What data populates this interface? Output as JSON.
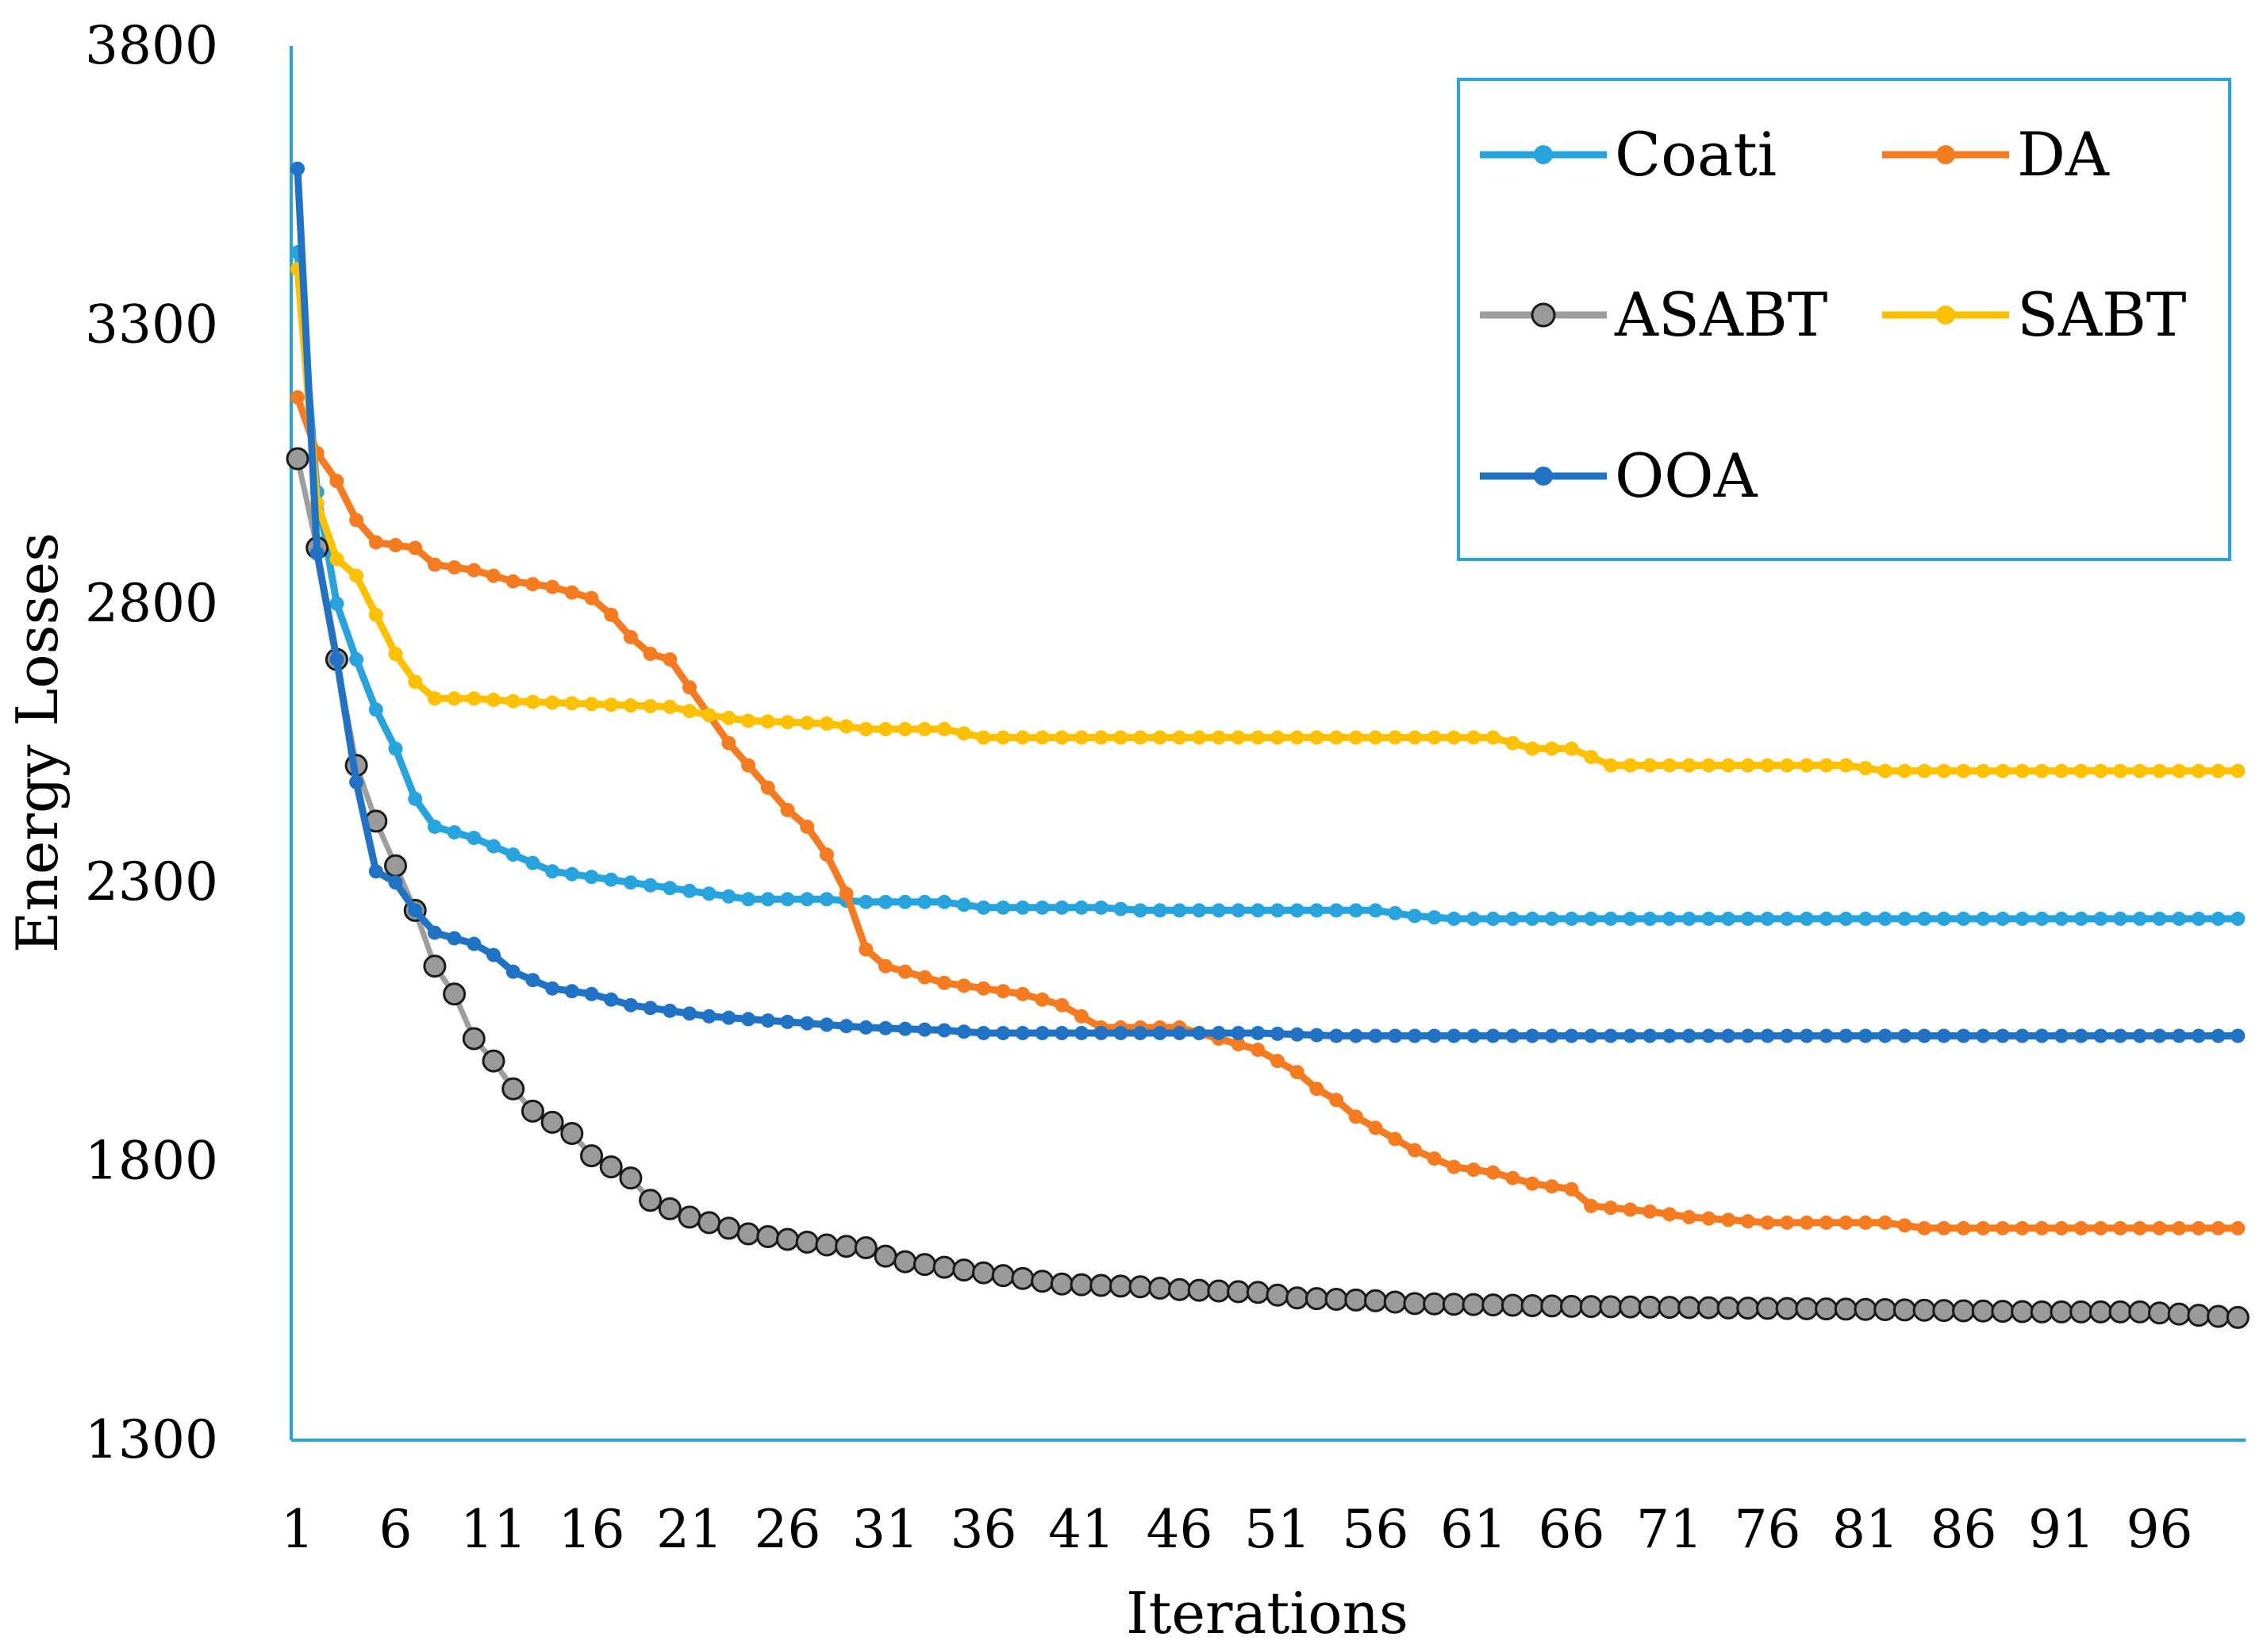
{
  "chart_data": {
    "type": "line",
    "title": "",
    "xlabel": "Iterations",
    "ylabel": "Energy Losses",
    "xlim": [
      1,
      100
    ],
    "ylim": [
      1300,
      3800
    ],
    "yticks": [
      1300,
      1800,
      2300,
      2800,
      3300,
      3800
    ],
    "xticks": [
      1,
      6,
      11,
      16,
      21,
      26,
      31,
      36,
      41,
      46,
      51,
      56,
      61,
      66,
      71,
      76,
      81,
      86,
      91,
      96
    ],
    "legend_position": "top-right",
    "grid": false,
    "series": [
      {
        "name": "Coati",
        "color": "#27A3DD",
        "keypoints": [
          [
            1,
            3430
          ],
          [
            2,
            3000
          ],
          [
            3,
            2800
          ],
          [
            4,
            2700
          ],
          [
            5,
            2610
          ],
          [
            6,
            2540
          ],
          [
            7,
            2450
          ],
          [
            8,
            2400
          ],
          [
            10,
            2380
          ],
          [
            12,
            2350
          ],
          [
            14,
            2320
          ],
          [
            16,
            2310
          ],
          [
            18,
            2300
          ],
          [
            20,
            2290
          ],
          [
            22,
            2280
          ],
          [
            24,
            2270
          ],
          [
            28,
            2270
          ],
          [
            30,
            2265
          ],
          [
            34,
            2265
          ],
          [
            36,
            2255
          ],
          [
            42,
            2255
          ],
          [
            44,
            2250
          ],
          [
            56,
            2250
          ],
          [
            58,
            2240
          ],
          [
            60,
            2235
          ],
          [
            100,
            2235
          ]
        ]
      },
      {
        "name": "DA",
        "color": "#F47B20",
        "keypoints": [
          [
            1,
            3170
          ],
          [
            2,
            3070
          ],
          [
            3,
            3020
          ],
          [
            4,
            2950
          ],
          [
            5,
            2910
          ],
          [
            7,
            2900
          ],
          [
            8,
            2870
          ],
          [
            10,
            2860
          ],
          [
            12,
            2840
          ],
          [
            14,
            2830
          ],
          [
            16,
            2810
          ],
          [
            17,
            2780
          ],
          [
            18,
            2740
          ],
          [
            19,
            2710
          ],
          [
            20,
            2700
          ],
          [
            21,
            2650
          ],
          [
            22,
            2600
          ],
          [
            23,
            2550
          ],
          [
            24,
            2510
          ],
          [
            25,
            2470
          ],
          [
            26,
            2430
          ],
          [
            27,
            2400
          ],
          [
            28,
            2350
          ],
          [
            29,
            2280
          ],
          [
            30,
            2180
          ],
          [
            31,
            2150
          ],
          [
            32,
            2140
          ],
          [
            34,
            2120
          ],
          [
            36,
            2110
          ],
          [
            38,
            2100
          ],
          [
            40,
            2080
          ],
          [
            41,
            2060
          ],
          [
            42,
            2040
          ],
          [
            46,
            2040
          ],
          [
            48,
            2020
          ],
          [
            50,
            2000
          ],
          [
            52,
            1960
          ],
          [
            53,
            1930
          ],
          [
            54,
            1910
          ],
          [
            55,
            1880
          ],
          [
            57,
            1840
          ],
          [
            58,
            1820
          ],
          [
            60,
            1790
          ],
          [
            62,
            1780
          ],
          [
            64,
            1760
          ],
          [
            66,
            1750
          ],
          [
            67,
            1720
          ],
          [
            70,
            1710
          ],
          [
            72,
            1700
          ],
          [
            74,
            1695
          ],
          [
            76,
            1690
          ],
          [
            82,
            1690
          ],
          [
            84,
            1680
          ],
          [
            100,
            1680
          ]
        ]
      },
      {
        "name": "ASABT",
        "color": "#9E9E9E",
        "marker": "hollow-circle",
        "keypoints": [
          [
            1,
            3060
          ],
          [
            2,
            2900
          ],
          [
            3,
            2700
          ],
          [
            4,
            2510
          ],
          [
            5,
            2410
          ],
          [
            6,
            2330
          ],
          [
            7,
            2250
          ],
          [
            8,
            2150
          ],
          [
            9,
            2100
          ],
          [
            10,
            2020
          ],
          [
            11,
            1980
          ],
          [
            12,
            1930
          ],
          [
            13,
            1890
          ],
          [
            14,
            1870
          ],
          [
            15,
            1850
          ],
          [
            16,
            1810
          ],
          [
            17,
            1790
          ],
          [
            18,
            1770
          ],
          [
            19,
            1730
          ],
          [
            20,
            1715
          ],
          [
            21,
            1700
          ],
          [
            22,
            1690
          ],
          [
            23,
            1680
          ],
          [
            24,
            1670
          ],
          [
            26,
            1660
          ],
          [
            28,
            1650
          ],
          [
            30,
            1645
          ],
          [
            31,
            1630
          ],
          [
            32,
            1620
          ],
          [
            34,
            1610
          ],
          [
            36,
            1600
          ],
          [
            38,
            1590
          ],
          [
            40,
            1580
          ],
          [
            44,
            1575
          ],
          [
            46,
            1570
          ],
          [
            50,
            1565
          ],
          [
            52,
            1555
          ],
          [
            56,
            1550
          ],
          [
            58,
            1545
          ],
          [
            66,
            1540
          ],
          [
            80,
            1535
          ],
          [
            90,
            1530
          ],
          [
            95,
            1530
          ],
          [
            100,
            1520
          ]
        ]
      },
      {
        "name": "SABT",
        "color": "#FFC000",
        "keypoints": [
          [
            1,
            3400
          ],
          [
            2,
            2980
          ],
          [
            3,
            2880
          ],
          [
            4,
            2850
          ],
          [
            5,
            2780
          ],
          [
            6,
            2710
          ],
          [
            7,
            2660
          ],
          [
            8,
            2630
          ],
          [
            10,
            2630
          ],
          [
            12,
            2625
          ],
          [
            16,
            2620
          ],
          [
            20,
            2615
          ],
          [
            22,
            2600
          ],
          [
            24,
            2590
          ],
          [
            28,
            2585
          ],
          [
            30,
            2575
          ],
          [
            34,
            2575
          ],
          [
            36,
            2560
          ],
          [
            44,
            2560
          ],
          [
            60,
            2560
          ],
          [
            62,
            2560
          ],
          [
            64,
            2540
          ],
          [
            66,
            2540
          ],
          [
            68,
            2510
          ],
          [
            80,
            2510
          ],
          [
            82,
            2500
          ],
          [
            100,
            2500
          ]
        ]
      },
      {
        "name": "OOA",
        "color": "#1F72C4",
        "keypoints": [
          [
            1,
            3580
          ],
          [
            2,
            2890
          ],
          [
            3,
            2700
          ],
          [
            4,
            2480
          ],
          [
            5,
            2320
          ],
          [
            6,
            2300
          ],
          [
            7,
            2250
          ],
          [
            8,
            2210
          ],
          [
            10,
            2190
          ],
          [
            11,
            2170
          ],
          [
            12,
            2140
          ],
          [
            14,
            2110
          ],
          [
            16,
            2100
          ],
          [
            18,
            2080
          ],
          [
            20,
            2070
          ],
          [
            22,
            2060
          ],
          [
            26,
            2050
          ],
          [
            30,
            2040
          ],
          [
            34,
            2035
          ],
          [
            36,
            2030
          ],
          [
            50,
            2030
          ],
          [
            54,
            2025
          ],
          [
            100,
            2025
          ]
        ]
      }
    ]
  }
}
